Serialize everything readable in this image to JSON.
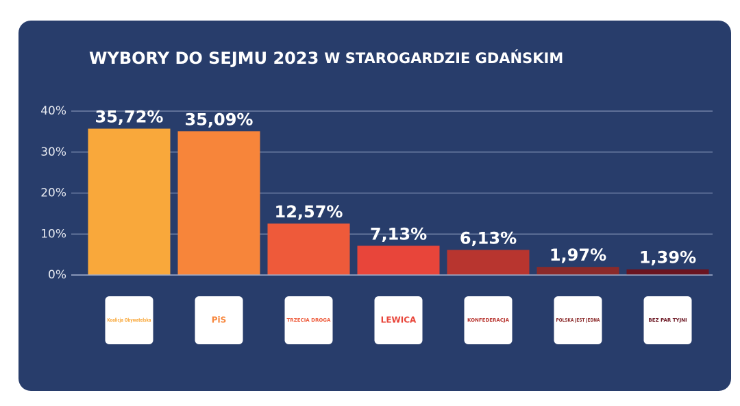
{
  "chart_data": {
    "type": "bar",
    "title": "WYBORY DO SEJMU 2023",
    "subtitle": "W STAROGARDZIE GDAŃSKIM",
    "categories": [
      "Koalicja Obywatelska",
      "PiS",
      "TRZECIA DROGA",
      "LEWICA",
      "KONFEDERACJA",
      "POLSKA JEST JEDNA",
      "BEZ PAR TYJNI"
    ],
    "values": [
      35.72,
      35.09,
      12.57,
      7.13,
      6.13,
      1.97,
      1.39
    ],
    "value_labels": [
      "35,72%",
      "35,09%",
      "12,57%",
      "7,13%",
      "6,13%",
      "1,97%",
      "1,39%"
    ],
    "colors": [
      "#f9a83b",
      "#f7853a",
      "#ee5a3a",
      "#e8453a",
      "#b8352f",
      "#8b2a2a",
      "#6a1420"
    ],
    "ylim": [
      0,
      40
    ],
    "yticks": [
      {
        "value": 0,
        "label": "0%"
      },
      {
        "value": 10,
        "label": "10%"
      },
      {
        "value": 20,
        "label": "20%"
      },
      {
        "value": 30,
        "label": "30%"
      },
      {
        "value": 40,
        "label": "40%"
      }
    ],
    "grid": true
  }
}
